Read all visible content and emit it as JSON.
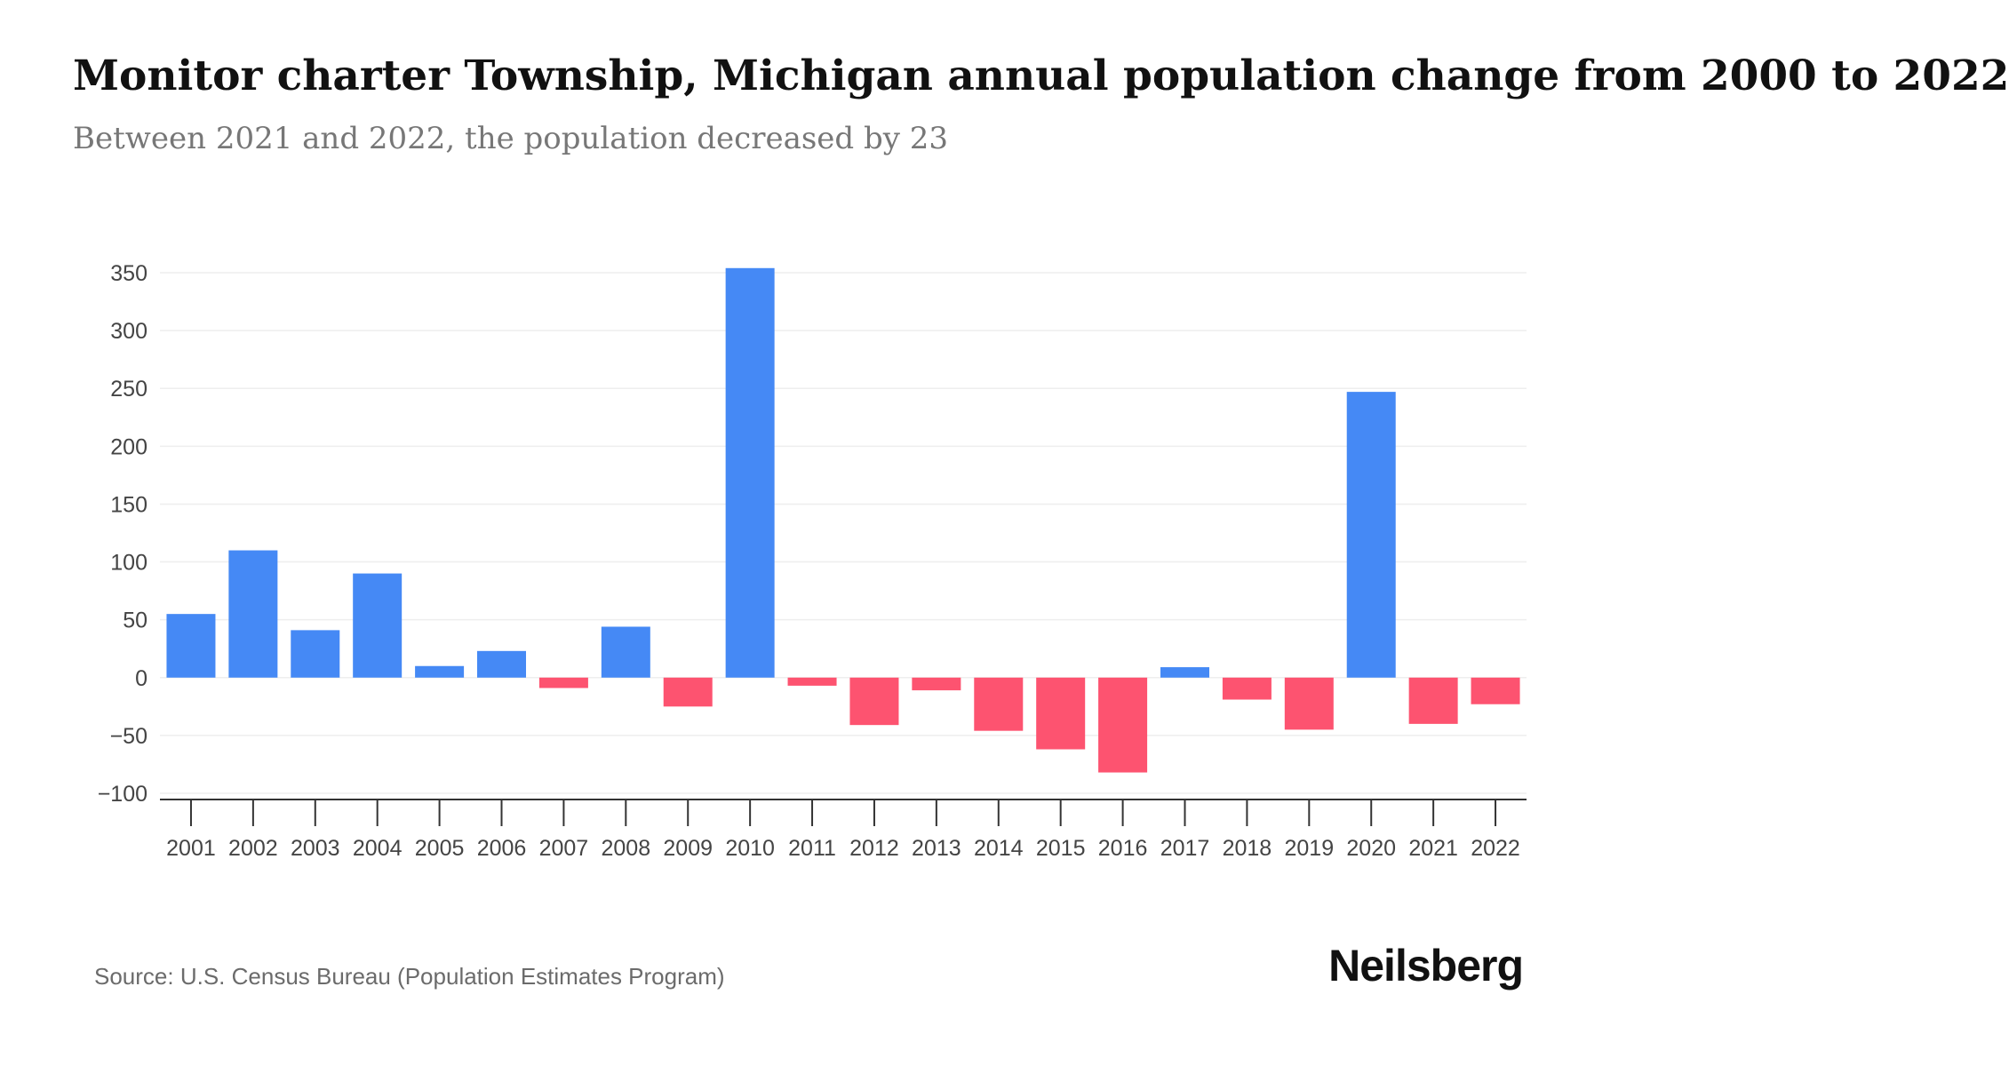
{
  "title": "Monitor charter Township, Michigan annual population change from 2000 to 2022",
  "subtitle": "Between 2021 and 2022, the population decreased by 23",
  "source": "Source: U.S. Census Bureau (Population Estimates Program)",
  "brand": "Neilsberg",
  "colors": {
    "positive": "#4589f5",
    "negative": "#fd5370",
    "grid": "#eeeeee",
    "axis": "#333333"
  },
  "chart_data": {
    "type": "bar",
    "categories": [
      "2001",
      "2002",
      "2003",
      "2004",
      "2005",
      "2006",
      "2007",
      "2008",
      "2009",
      "2010",
      "2011",
      "2012",
      "2013",
      "2014",
      "2015",
      "2016",
      "2017",
      "2018",
      "2019",
      "2020",
      "2021",
      "2022"
    ],
    "values": [
      55,
      110,
      41,
      90,
      10,
      23,
      -9,
      44,
      -25,
      354,
      -7,
      -41,
      -11,
      -46,
      -62,
      -82,
      9,
      -19,
      -45,
      247,
      -40,
      -23
    ],
    "ylim": [
      -100,
      350
    ],
    "yticks": [
      350,
      300,
      250,
      200,
      150,
      100,
      50,
      0,
      -50,
      -100
    ],
    "ytick_labels": [
      "350",
      "300",
      "250",
      "200",
      "150",
      "100",
      "50",
      "0",
      "−50",
      "−100"
    ],
    "grid": true
  }
}
